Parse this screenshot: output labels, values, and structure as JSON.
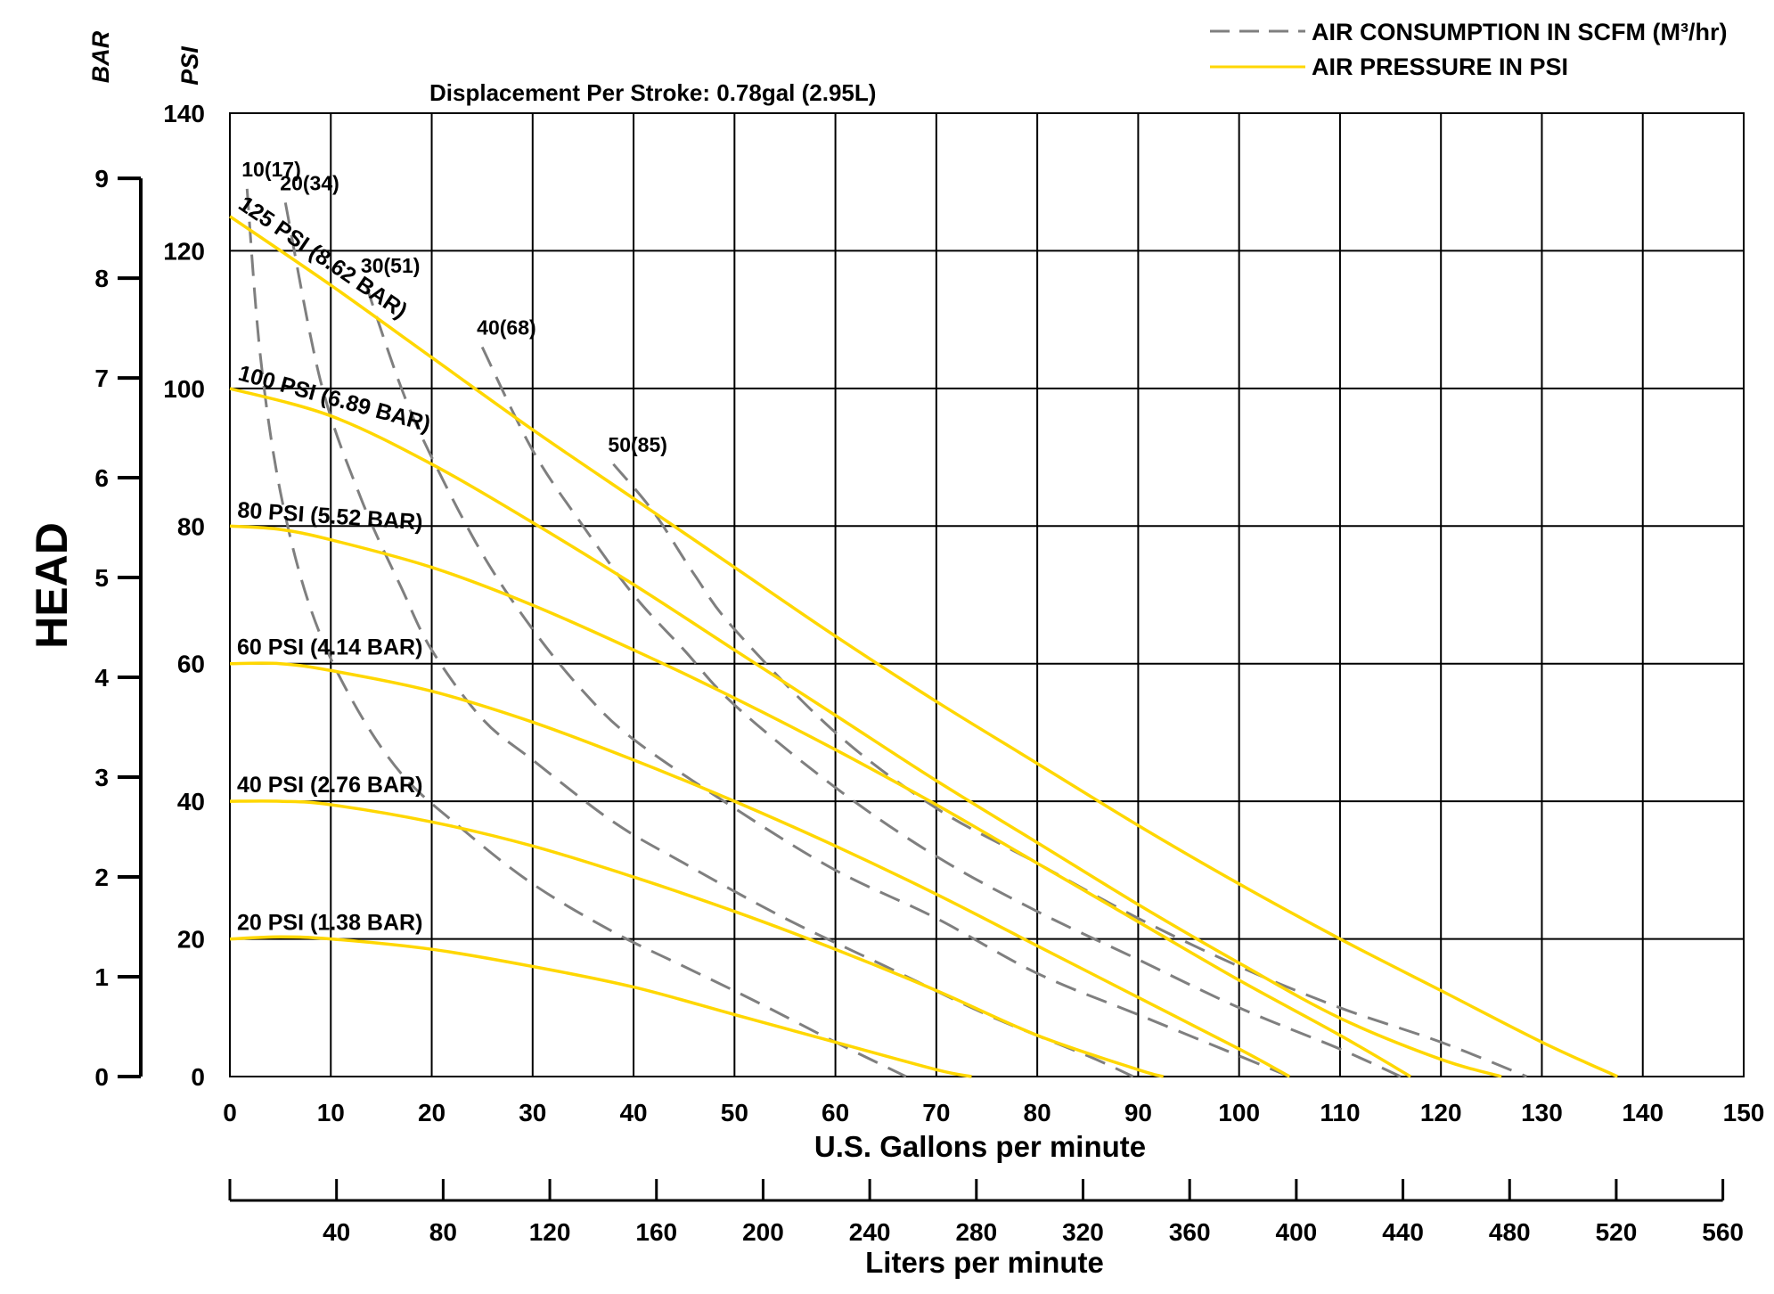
{
  "chart_data": {
    "type": "line",
    "title": "Displacement Per Stroke:  0.78gal (2.95L)",
    "xlabel": "U.S.  Gallons per minute",
    "x2label": "Liters per minute",
    "ylabel": "HEAD",
    "y_unit_left": "BAR",
    "y_unit_right": "PSI",
    "xlim": [
      0,
      150
    ],
    "ylim": [
      0,
      140
    ],
    "x_ticks": [
      "0",
      "10",
      "20",
      "30",
      "40",
      "50",
      "60",
      "70",
      "80",
      "90",
      "100",
      "110",
      "120",
      "130",
      "140",
      "150"
    ],
    "y_ticks": [
      "0",
      "20",
      "40",
      "60",
      "80",
      "100",
      "120",
      "140"
    ],
    "bar_ticks": [
      "0",
      "1",
      "2",
      "3",
      "4",
      "5",
      "6",
      "7",
      "8",
      "9"
    ],
    "lpm_ticks": [
      "40",
      "80",
      "120",
      "160",
      "200",
      "240",
      "280",
      "320",
      "360",
      "400",
      "440",
      "480",
      "520",
      "560"
    ],
    "grid": true,
    "legend_position": "top-right",
    "legend": [
      {
        "label": "AIR CONSUMPTION IN SCFM (M³/hr)",
        "style": "dashed",
        "color": "#7f7f7f"
      },
      {
        "label": "AIR PRESSURE IN PSI",
        "style": "solid",
        "color": "#ffd700"
      }
    ],
    "pressure_series": [
      {
        "name": "20 PSI (1.38 BAR)",
        "x": [
          0,
          5,
          10,
          20,
          30,
          40,
          50,
          60,
          70,
          73.5
        ],
        "y": [
          20,
          20.3,
          20,
          18.5,
          16,
          13,
          9,
          5,
          1,
          0
        ]
      },
      {
        "name": "40 PSI (2.76 BAR)",
        "x": [
          0,
          5,
          10,
          20,
          30,
          40,
          50,
          60,
          70,
          80,
          90,
          92.5
        ],
        "y": [
          40,
          40,
          39.5,
          37,
          33.5,
          29,
          24,
          18.5,
          12.5,
          6,
          1,
          0
        ]
      },
      {
        "name": "60 PSI (4.14 BAR)",
        "x": [
          0,
          5,
          10,
          20,
          30,
          40,
          50,
          60,
          70,
          80,
          90,
          100,
          105
        ],
        "y": [
          60,
          60,
          59,
          56,
          51.5,
          46,
          40,
          33.5,
          26.5,
          19,
          11.5,
          4,
          0
        ]
      },
      {
        "name": "80 PSI (5.52 BAR)",
        "x": [
          0,
          5,
          10,
          20,
          30,
          40,
          50,
          60,
          70,
          80,
          90,
          100,
          110,
          117
        ],
        "y": [
          80,
          79.5,
          78,
          74,
          68.5,
          62,
          55,
          47.5,
          39.5,
          31,
          22.5,
          14,
          6,
          0
        ]
      },
      {
        "name": "100 PSI (6.89 BAR)",
        "x": [
          0,
          10,
          20,
          30,
          40,
          50,
          60,
          70,
          80,
          90,
          100,
          110,
          120,
          126
        ],
        "y": [
          100,
          96,
          89,
          80.5,
          71.5,
          62,
          52.5,
          43,
          34,
          25,
          16.5,
          8.5,
          2.5,
          0
        ]
      },
      {
        "name": "125 PSI (8.62 BAR)",
        "x": [
          0,
          10,
          20,
          30,
          40,
          50,
          60,
          70,
          80,
          90,
          100,
          110,
          120,
          130,
          137.5
        ],
        "y": [
          125,
          115,
          104.5,
          94,
          84,
          74,
          64,
          54.5,
          45.5,
          36.5,
          28,
          20,
          12.5,
          5,
          0
        ]
      }
    ],
    "air_series": [
      {
        "name": "10(17)",
        "x": [
          1.7,
          3,
          5,
          8,
          12,
          17,
          23,
          30,
          38,
          45,
          52,
          60,
          67
        ],
        "y": [
          129,
          105,
          85,
          68,
          55,
          44,
          36,
          28,
          21,
          16,
          11,
          5,
          0
        ]
      },
      {
        "name": "20(34)",
        "x": [
          5.5,
          9,
          13,
          17,
          20,
          25,
          30,
          38,
          45,
          55,
          65,
          75,
          85,
          89.5
        ],
        "y": [
          127,
          101,
          84,
          71,
          62,
          52,
          46,
          37,
          31,
          23,
          16,
          9,
          3,
          0
        ]
      },
      {
        "name": "30(51)",
        "x": [
          13.5,
          17,
          20,
          25,
          30,
          35,
          40,
          50,
          60,
          70,
          80,
          90,
          100,
          105
        ],
        "y": [
          115,
          100,
          90,
          76,
          65,
          56,
          49,
          39,
          30,
          23,
          15,
          9,
          3,
          0
        ]
      },
      {
        "name": "40(68)",
        "x": [
          25,
          30,
          35,
          40,
          45,
          50,
          60,
          70,
          80,
          90,
          100,
          110,
          116
        ],
        "y": [
          106,
          91,
          80,
          70,
          62,
          54,
          42,
          32,
          24,
          17,
          10,
          4,
          0
        ]
      },
      {
        "name": "50(85)",
        "x": [
          38,
          42,
          46,
          50,
          60,
          70,
          80,
          90,
          100,
          110,
          120,
          128.5
        ],
        "y": [
          89,
          82,
          73,
          65,
          50,
          39,
          31,
          23,
          16,
          10,
          5,
          0
        ]
      }
    ]
  }
}
